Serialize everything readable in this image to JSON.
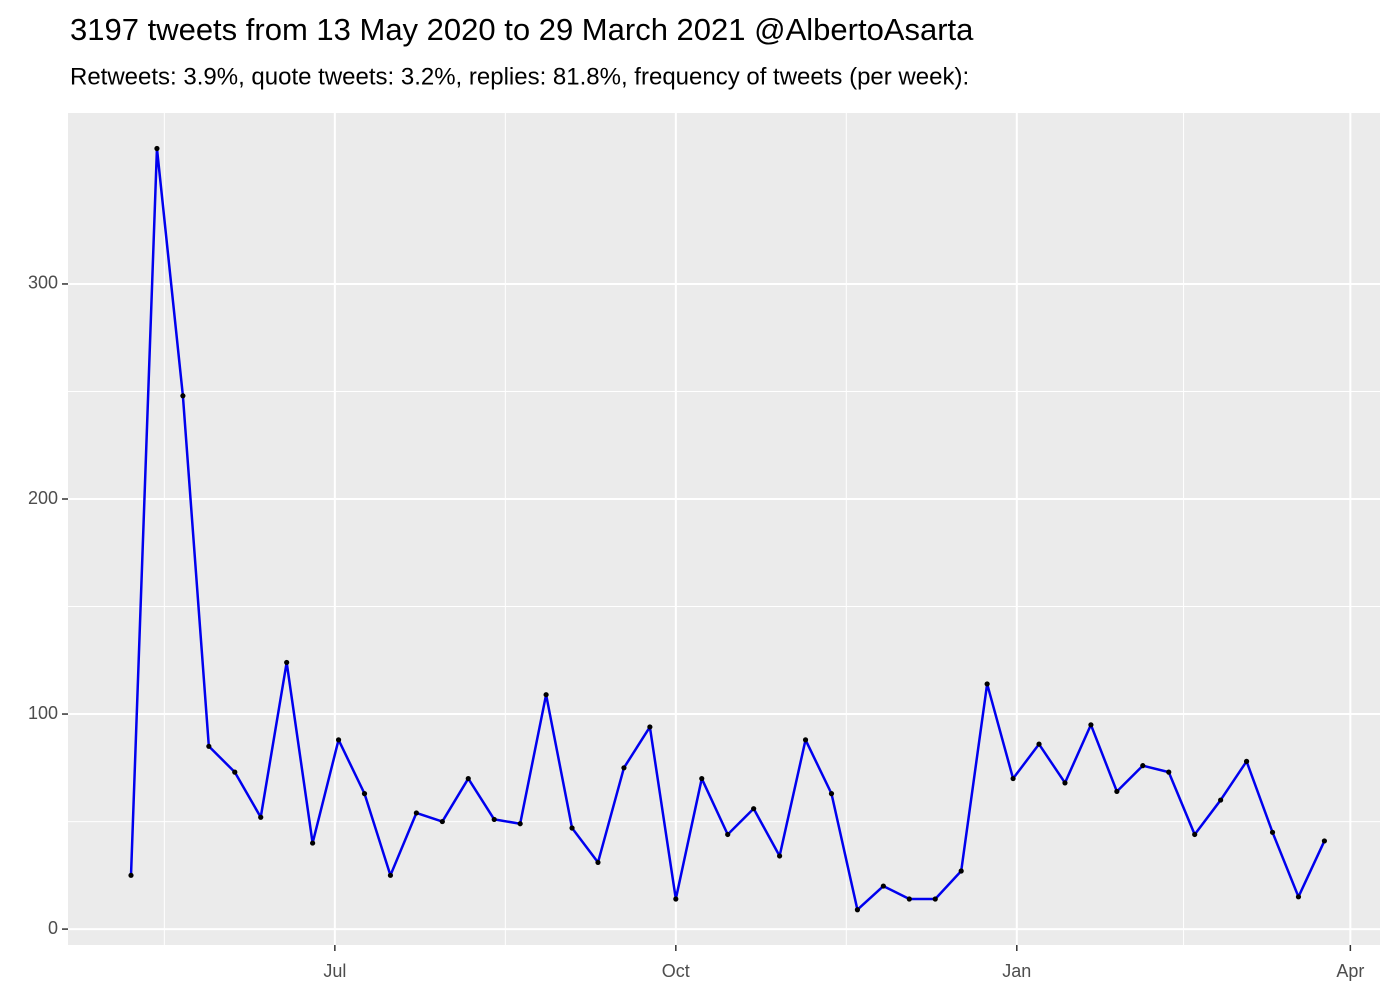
{
  "chart_data": {
    "type": "line",
    "title": "3197 tweets from 13 May 2020 to 29 March 2021 @AlbertoAsarta",
    "subtitle": "Retweets: 3.9%, quote tweets: 3.2%, replies: 81.8%, frequency of tweets (per week):",
    "x": [
      -55,
      -48,
      -41,
      -34,
      -27,
      -20,
      -13,
      -6,
      1,
      8,
      15,
      22,
      29,
      36,
      43,
      50,
      57,
      64,
      71,
      78,
      85,
      92,
      99,
      106,
      113,
      120,
      127,
      134,
      141,
      148,
      155,
      162,
      169,
      176,
      183,
      190,
      197,
      204,
      211,
      218,
      225,
      232,
      239,
      246,
      253,
      260,
      267
    ],
    "series": [
      {
        "color": "#0000ee",
        "values": [
          25,
          363,
          248,
          85,
          73,
          52,
          124,
          40,
          88,
          63,
          25,
          54,
          50,
          70,
          51,
          49,
          109,
          47,
          31,
          75,
          94,
          14,
          70,
          44,
          56,
          34,
          88,
          63,
          9,
          20,
          14,
          14,
          27,
          114,
          70,
          86,
          68,
          95,
          64,
          76,
          73,
          44,
          60,
          78,
          45,
          15,
          41
        ]
      }
    ],
    "point_color": "#000000",
    "xlim": [
      -72,
      282
    ],
    "xticks": [
      {
        "value": 0,
        "label": "Jul"
      },
      {
        "value": 92,
        "label": "Oct"
      },
      {
        "value": 184,
        "label": "Jan"
      },
      {
        "value": 274,
        "label": "Apr"
      }
    ],
    "ylim": [
      -7.4,
      379.5
    ],
    "yticks": [
      0,
      100,
      200,
      300
    ],
    "grid": true
  }
}
